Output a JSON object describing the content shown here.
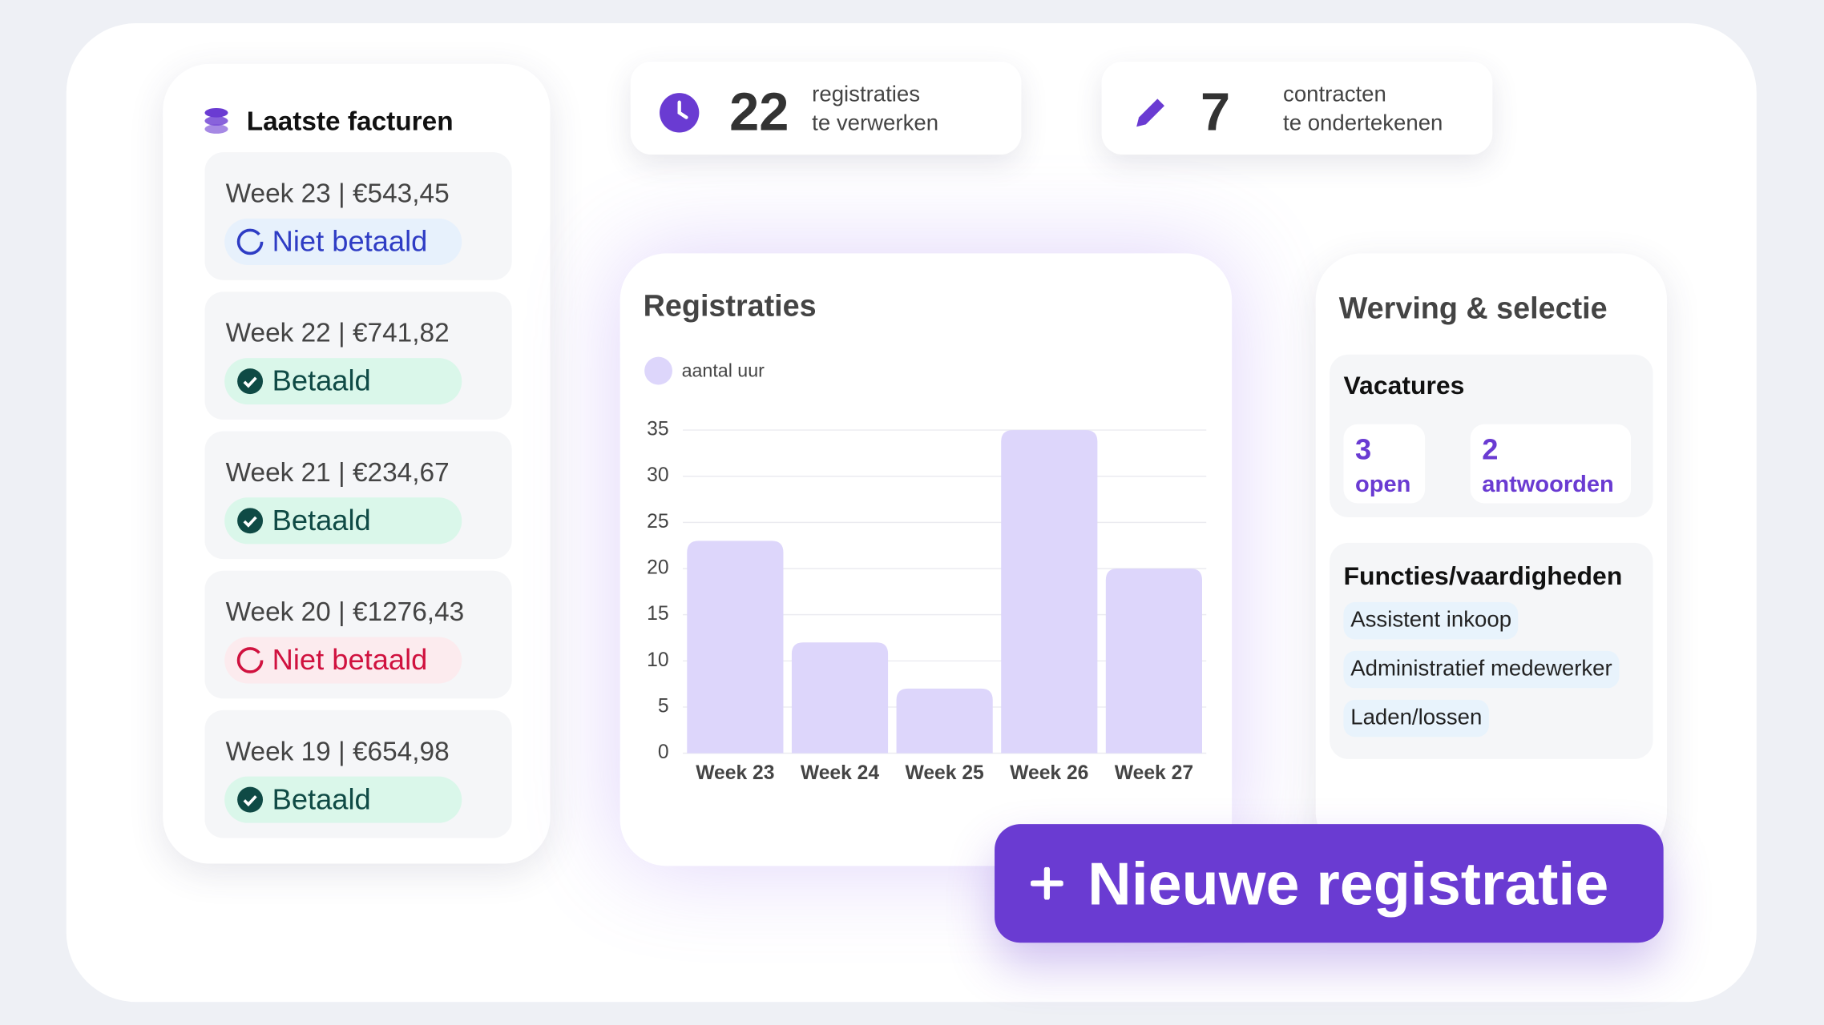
{
  "sidebar": {
    "title": "Laatste facturen",
    "invoices": [
      {
        "label": "Week 23 | €543,45",
        "status": "Niet betaald",
        "paid": false,
        "color": "#2e3cc4",
        "background": "#e7f1fc"
      },
      {
        "label": "Week 22 | €741,82",
        "status": "Betaald",
        "paid": true,
        "color": "#0f4a45",
        "background": "#daf7ea"
      },
      {
        "label": "Week 21 | €234,67",
        "status": "Betaald",
        "paid": true,
        "color": "#0f4a45",
        "background": "#daf7ea"
      },
      {
        "label": "Week 20 | €1276,43",
        "status": "Niet betaald",
        "paid": false,
        "color": "#d0123f",
        "background": "#fcebee"
      },
      {
        "label": "Week 19 | €654,98",
        "status": "Betaald",
        "paid": true,
        "color": "#0f4a45",
        "background": "#daf7ea"
      }
    ]
  },
  "stats": [
    {
      "value": "22",
      "line1": "registraties",
      "line2": "te verwerken"
    },
    {
      "value": "7",
      "line1": "contracten",
      "line2": "te ondertekenen"
    }
  ],
  "chart_data": {
    "type": "bar",
    "title": "Registraties",
    "categories": [
      "Week 23",
      "Week 24",
      "Week 25",
      "Week 26",
      "Week 27"
    ],
    "series": [
      {
        "name": "aantal uur",
        "color": "#ddd6fb",
        "values": [
          23,
          12,
          7,
          35,
          20
        ]
      }
    ],
    "ylim": [
      0,
      35
    ],
    "yticks": [
      0,
      5,
      10,
      15,
      20,
      25,
      30,
      35
    ],
    "grid": true
  },
  "recruitment": {
    "title": "Werving & selectie",
    "vacancies": {
      "title": "Vacatures",
      "items": [
        {
          "value": "3",
          "label": "open"
        },
        {
          "value": "2",
          "label": "antwoorden"
        }
      ]
    },
    "skills": {
      "title": "Functies/vaardigheden",
      "tags": [
        "Assistent inkoop",
        "Administratief medewerker",
        "Laden/lossen"
      ]
    }
  },
  "button": {
    "label": "Nieuwe registratie"
  }
}
